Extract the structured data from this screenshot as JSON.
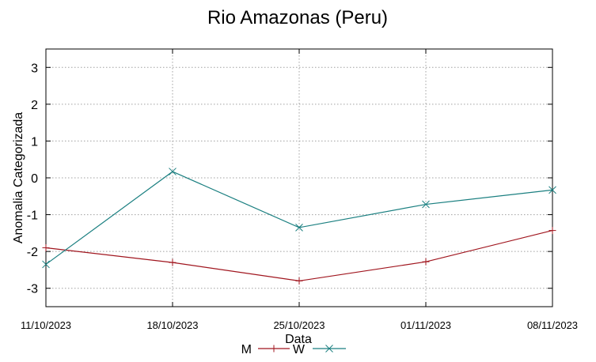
{
  "chart_data": {
    "type": "line",
    "title": "Rio Amazonas (Peru)",
    "xlabel": "Data",
    "ylabel": "Anomalia Categorizada",
    "categories": [
      "11/10/2023",
      "18/10/2023",
      "25/10/2023",
      "01/11/2023",
      "08/11/2023"
    ],
    "ylim": [
      -3.5,
      3.5
    ],
    "yticks": [
      "3",
      "2",
      "1",
      "0",
      "-1",
      "-2",
      "-3"
    ],
    "ytick_values": [
      3,
      2,
      1,
      0,
      -1,
      -2,
      -3
    ],
    "grid": true,
    "legend_position": "bottom-center",
    "series": [
      {
        "name": "M",
        "color": "#a0151e",
        "marker": "plus",
        "values": [
          -1.9,
          -2.3,
          -2.8,
          -2.28,
          -1.43
        ]
      },
      {
        "name": "W",
        "color": "#1a7f80",
        "marker": "x",
        "values": [
          -2.35,
          0.17,
          -1.35,
          -0.72,
          -0.33
        ]
      }
    ]
  }
}
